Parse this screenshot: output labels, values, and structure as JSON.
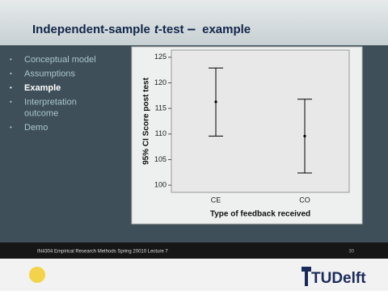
{
  "slide_title": [
    "Independent-sample",
    "t",
    "-test",
    "–",
    "example"
  ],
  "bullets": [
    "Conceptual model",
    "Assumptions",
    "Example",
    "Interpretation outcome",
    "Demo"
  ],
  "current_bullet": 2,
  "footer": {
    "text": "IN4304 Empirical Research Methods Spring 20010 Lecture 7",
    "page": "30",
    "logo": "TUDelft"
  },
  "chart_data": {
    "type": "errorbar",
    "categories": [
      "CE",
      "CO"
    ],
    "series": [
      {
        "color": "#000000",
        "values": [
          116.3,
          109.6
        ],
        "lower": [
          109.6,
          102.4
        ],
        "upper": [
          122.9,
          116.8
        ]
      }
    ],
    "ylim": [
      98.6,
      126.4
    ],
    "yticks": [
      100,
      105,
      110,
      115,
      120,
      125
    ],
    "ylabel": "95% CI Score post test",
    "xlabel": "Type of feedback received"
  }
}
